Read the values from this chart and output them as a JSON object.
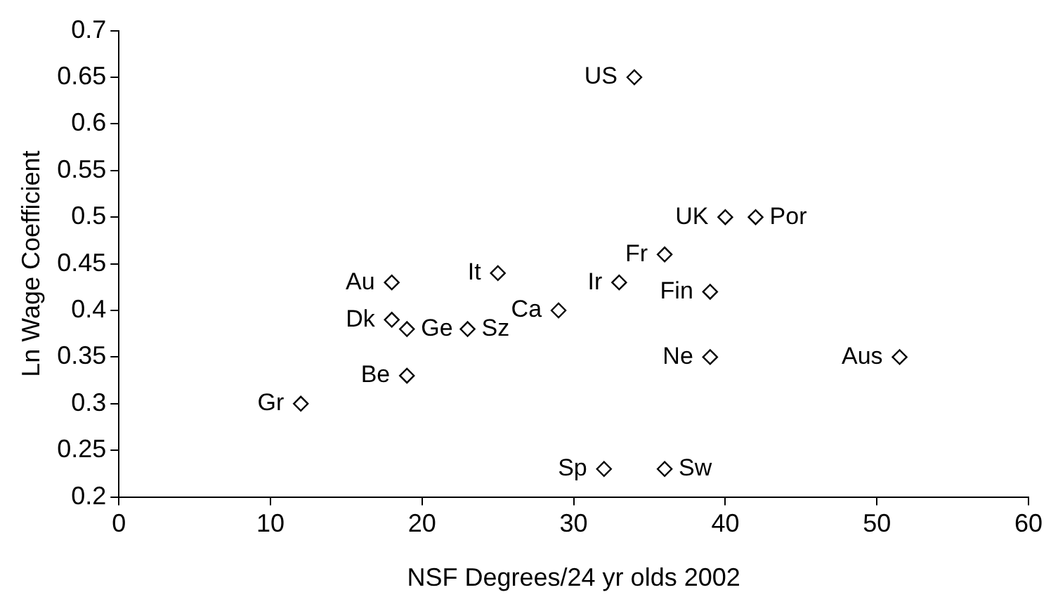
{
  "chart_data": {
    "type": "scatter",
    "xlabel": "NSF Degrees/24 yr olds 2002",
    "ylabel": "Ln Wage Coefficient",
    "x": [
      34,
      40,
      42,
      36,
      33,
      39,
      39,
      51.5,
      25,
      29,
      18,
      18,
      19,
      23,
      19,
      12,
      32,
      36
    ],
    "values": [
      0.65,
      0.5,
      0.5,
      0.46,
      0.43,
      0.42,
      0.35,
      0.35,
      0.44,
      0.4,
      0.43,
      0.39,
      0.38,
      0.38,
      0.33,
      0.3,
      0.23,
      0.23
    ],
    "color": "#000000",
    "marker": "diamond",
    "grid": false,
    "legend": false,
    "xlim": [
      0,
      60
    ],
    "xticks": [
      0,
      10,
      20,
      30,
      40,
      50,
      60
    ],
    "ylim": [
      0.2,
      0.7
    ],
    "yticks": [
      0.2,
      0.25,
      0.3,
      0.35,
      0.4,
      0.45,
      0.5,
      0.55,
      0.6,
      0.65,
      0.7
    ],
    "annotations": [
      {
        "text": "US",
        "x": 34,
        "y": 0.65
      },
      {
        "text": "UK",
        "x": 40,
        "y": 0.5
      },
      {
        "text": "Por",
        "x": 42,
        "y": 0.5
      },
      {
        "text": "Fr",
        "x": 36,
        "y": 0.46
      },
      {
        "text": "Ir",
        "x": 33,
        "y": 0.43
      },
      {
        "text": "Fin",
        "x": 39,
        "y": 0.42
      },
      {
        "text": "Ne",
        "x": 39,
        "y": 0.35
      },
      {
        "text": "Aus",
        "x": 51.5,
        "y": 0.35
      },
      {
        "text": "It",
        "x": 25,
        "y": 0.44
      },
      {
        "text": "Ca",
        "x": 29,
        "y": 0.4
      },
      {
        "text": "Au",
        "x": 18,
        "y": 0.43
      },
      {
        "text": "Dk",
        "x": 18,
        "y": 0.39
      },
      {
        "text": "Ge",
        "x": 19,
        "y": 0.38
      },
      {
        "text": "Sz",
        "x": 23,
        "y": 0.38
      },
      {
        "text": "Be",
        "x": 19,
        "y": 0.33
      },
      {
        "text": "Gr",
        "x": 12,
        "y": 0.3
      },
      {
        "text": "Sp",
        "x": 32,
        "y": 0.23
      },
      {
        "text": "Sw",
        "x": 36,
        "y": 0.23
      }
    ]
  }
}
